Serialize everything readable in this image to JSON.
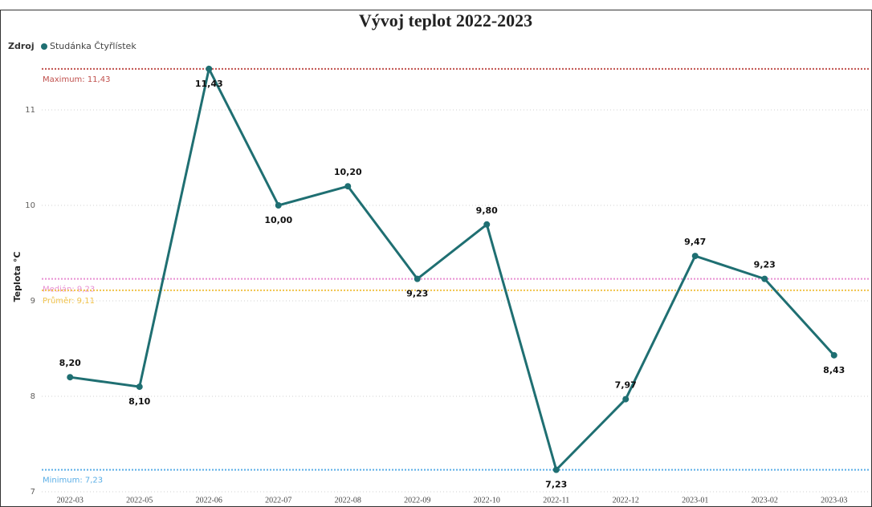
{
  "chart_data": {
    "type": "line",
    "title": "Vývoj teplot 2022-2023",
    "legend_title": "Zdroj",
    "y_label": "Teplota °C",
    "categories": [
      "2022-03",
      "2022-05",
      "2022-06",
      "2022-07",
      "2022-08",
      "2022-09",
      "2022-10",
      "2022-11",
      "2022-12",
      "2023-01",
      "2023-02",
      "2023-03"
    ],
    "series": [
      {
        "name": "Studánka Čtyřlístek",
        "color": "#1f6f72",
        "values": [
          8.2,
          8.1,
          11.43,
          10.0,
          10.2,
          9.23,
          9.8,
          7.23,
          7.97,
          9.47,
          9.23,
          8.43
        ],
        "value_labels": [
          "8,20",
          "8,10",
          "11,43",
          "10,00",
          "10,20",
          "9,23",
          "9,80",
          "7,23",
          "7,97",
          "9,47",
          "9,23",
          "8,43"
        ]
      }
    ],
    "ylim": [
      7,
      11.5
    ],
    "yticks": [
      7,
      8,
      9,
      10,
      11
    ],
    "grid": true,
    "reference_lines": [
      {
        "label": "Maximum: 11,43",
        "value": 11.43,
        "color": "#c0504d"
      },
      {
        "label": "Medián: 9,23",
        "value": 9.23,
        "color": "#e88fd2"
      },
      {
        "label": "Průměr: 9,11",
        "value": 9.11,
        "color": "#f0c24a"
      },
      {
        "label": "Minimum: 7,23",
        "value": 7.23,
        "color": "#5aaee6"
      }
    ]
  }
}
